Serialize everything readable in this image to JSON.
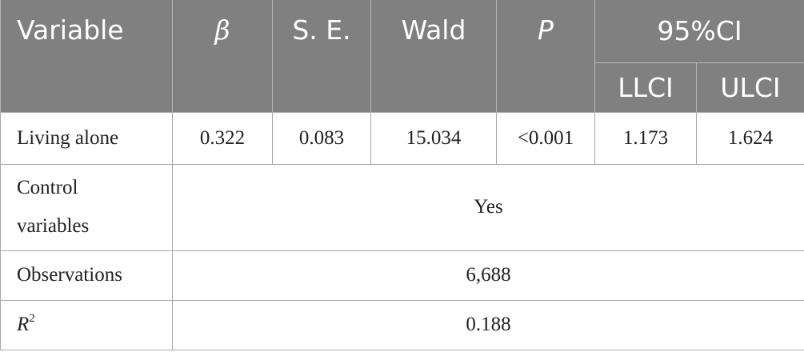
{
  "table": {
    "header": [
      "Variable",
      "β",
      "S. E.",
      "Wald",
      "P",
      "95%CI"
    ],
    "subheader": [
      "LLCI",
      "ULCI"
    ],
    "rows": [
      [
        "Living alone",
        "0.322",
        "0.083",
        "15.034",
        "<0.001",
        "1.173",
        "1.624"
      ],
      [
        "Control variables",
        "Yes"
      ],
      [
        "Observations",
        "6,688"
      ],
      [
        {
          "label": "R",
          "superscript": "2"
        },
        "0.188"
      ]
    ]
  }
}
